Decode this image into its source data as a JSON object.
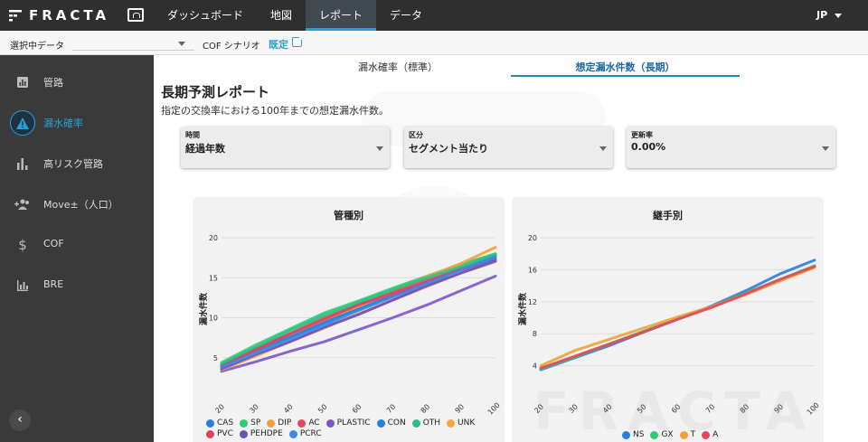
{
  "app": {
    "logo": "FRACTA",
    "lang": "JP"
  },
  "nav": {
    "items": [
      "ダッシュボード",
      "地図",
      "レポート",
      "データ"
    ]
  },
  "subbar": {
    "data_label": "選択中データ",
    "data_value": "",
    "cof_label": "COF シナリオ",
    "cof_link": "既定"
  },
  "sidebar": {
    "items": [
      {
        "label": "管路",
        "icon": "report-icon"
      },
      {
        "label": "漏水確率",
        "icon": "warning-icon"
      },
      {
        "label": "高リスク管路",
        "icon": "bar-chart-icon"
      },
      {
        "label": "Move±（人口）",
        "icon": "people-icon"
      },
      {
        "label": "COF",
        "icon": "dollar-icon"
      },
      {
        "label": "BRE",
        "icon": "chart-icon"
      }
    ]
  },
  "tabs": [
    "漏水確率（標準）",
    "想定漏水件数（長期）"
  ],
  "page": {
    "title": "長期予測レポート",
    "subtitle": "指定の交換率における100年までの想定漏水件数。"
  },
  "fields": [
    {
      "label": "時間",
      "value": "経過年数"
    },
    {
      "label": "区分",
      "value": "セグメント当たり"
    },
    {
      "label": "更新率",
      "value": "0.00%"
    }
  ],
  "colors": {
    "accent": "#2a9fd6",
    "topbar": "#2f2f2f",
    "sidebar": "#3a3a3a"
  },
  "chart_data": [
    {
      "type": "line",
      "title": "管種別",
      "ylabel": "漏水件数",
      "xlabel": "",
      "x": [
        20,
        30,
        40,
        50,
        60,
        70,
        80,
        90,
        100
      ],
      "xticks": [
        "20",
        "30",
        "40",
        "50",
        "60",
        "70",
        "80",
        "90",
        "100"
      ],
      "yticks": [
        "5",
        "10",
        "15",
        "20"
      ],
      "ylim": [
        0,
        20
      ],
      "series": [
        {
          "name": "CAS",
          "color": "#2a7de1",
          "values": [
            4.0,
            5.8,
            7.5,
            9.3,
            11.0,
            12.7,
            14.4,
            16.1,
            17.8
          ]
        },
        {
          "name": "SP",
          "color": "#2ecc71",
          "values": [
            4.4,
            6.6,
            8.6,
            10.6,
            12.1,
            13.7,
            15.2,
            16.7,
            18.0
          ]
        },
        {
          "name": "DIP",
          "color": "#f0a23a",
          "values": [
            3.8,
            5.8,
            7.7,
            9.6,
            11.4,
            13.3,
            15.1,
            16.8,
            18.8
          ]
        },
        {
          "name": "AC",
          "color": "#e8475a",
          "values": [
            4.0,
            6.2,
            8.0,
            10.0,
            11.7,
            13.2,
            14.7,
            16.2,
            17.5
          ]
        },
        {
          "name": "PLASTIC",
          "color": "#7b56c9",
          "values": [
            3.3,
            4.5,
            5.8,
            7.0,
            8.5,
            10.0,
            11.6,
            13.4,
            15.2
          ]
        },
        {
          "name": "CON",
          "color": "#2680e0",
          "values": [
            4.1,
            5.9,
            7.6,
            9.4,
            11.1,
            12.8,
            14.5,
            16.0,
            17.3
          ]
        },
        {
          "name": "OTH",
          "color": "#27c08a",
          "values": [
            4.2,
            6.3,
            8.4,
            10.3,
            11.9,
            13.5,
            15.0,
            16.4,
            17.9
          ]
        },
        {
          "name": "UNK",
          "color": "#f4a640",
          "values": [
            3.5,
            5.2,
            7.0,
            8.7,
            10.5,
            12.2,
            13.9,
            15.6,
            17.0
          ]
        },
        {
          "name": "PVC",
          "color": "#e0445a",
          "values": [
            3.9,
            6.0,
            8.0,
            9.8,
            11.6,
            13.0,
            14.5,
            16.0,
            17.6
          ]
        },
        {
          "name": "PEHDPE",
          "color": "#6a4ec0",
          "values": [
            3.6,
            5.4,
            7.0,
            8.8,
            10.4,
            12.2,
            14.0,
            15.6,
            17.1
          ]
        },
        {
          "name": "PCRC",
          "color": "#3a8ae6",
          "values": [
            3.8,
            5.6,
            7.3,
            9.1,
            10.9,
            12.6,
            14.3,
            16.0,
            17.6
          ]
        }
      ]
    },
    {
      "type": "line",
      "title": "継手別",
      "ylabel": "漏水件数",
      "xlabel": "",
      "x": [
        20,
        30,
        40,
        50,
        60,
        70,
        80,
        90,
        100
      ],
      "xticks": [
        "20",
        "30",
        "40",
        "50",
        "60",
        "70",
        "80",
        "90",
        "100"
      ],
      "yticks": [
        "4",
        "8",
        "12",
        "16",
        "20"
      ],
      "ylim": [
        0,
        20
      ],
      "series": [
        {
          "name": "NS",
          "color": "#2a7de1",
          "values": [
            3.5,
            5.0,
            6.5,
            8.2,
            9.8,
            11.5,
            13.4,
            15.5,
            17.2
          ]
        },
        {
          "name": "GX",
          "color": "#2ecc71",
          "values": [
            3.6,
            5.1,
            6.7,
            8.3,
            9.9,
            11.4,
            13.1,
            14.8,
            16.5
          ]
        },
        {
          "name": "T",
          "color": "#f0a23a",
          "values": [
            4.0,
            5.9,
            7.3,
            8.7,
            10.1,
            11.4,
            12.9,
            14.6,
            16.3
          ]
        },
        {
          "name": "A",
          "color": "#e8475a",
          "values": [
            3.7,
            5.2,
            6.7,
            8.2,
            9.8,
            11.3,
            13.0,
            14.8,
            16.4
          ]
        }
      ]
    }
  ]
}
